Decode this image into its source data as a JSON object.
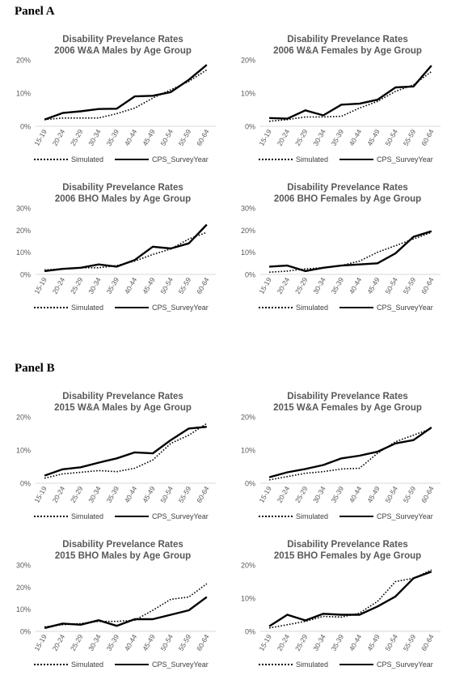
{
  "panels": {
    "a": "Panel A",
    "b": "Panel B"
  },
  "legend": {
    "simulated": "Simulated",
    "cps": "CPS_SurveyYear"
  },
  "colors": {
    "line": "#000000",
    "axis_text": "#595959",
    "title": "#595959"
  },
  "chart_data": [
    {
      "type": "line",
      "title_line1": "Disability Prevelance Rates",
      "title_line2": "2006 W&A Males by Age Group",
      "categories": [
        "15-19",
        "20-24",
        "25-29",
        "30-34",
        "35-39",
        "40-44",
        "45-49",
        "50-54",
        "55-59",
        "60-64"
      ],
      "ylim": [
        0,
        20
      ],
      "yticks": [
        "0%",
        "10%",
        "20%"
      ],
      "series": [
        {
          "name": "Simulated",
          "style": "dotted",
          "values": [
            2.0,
            2.5,
            2.5,
            2.5,
            3.8,
            5.5,
            8.5,
            11.0,
            13.5,
            17.0
          ]
        },
        {
          "name": "CPS_SurveyYear",
          "style": "solid",
          "values": [
            2.0,
            4.0,
            4.5,
            5.2,
            5.3,
            9.0,
            9.2,
            10.3,
            14.0,
            18.5
          ]
        }
      ]
    },
    {
      "type": "line",
      "title_line1": "Disability Prevelance Rates",
      "title_line2": "2006 W&A Females by Age Group",
      "categories": [
        "15-19",
        "20-24",
        "25-29",
        "30-34",
        "35-39",
        "40-44",
        "45-49",
        "50-54",
        "55-59",
        "60-64"
      ],
      "ylim": [
        0,
        20
      ],
      "yticks": [
        "0%",
        "10%",
        "20%"
      ],
      "series": [
        {
          "name": "Simulated",
          "style": "dotted",
          "values": [
            1.5,
            2.0,
            2.8,
            2.8,
            3.0,
            5.5,
            7.5,
            10.5,
            12.5,
            16.5
          ]
        },
        {
          "name": "CPS_SurveyYear",
          "style": "solid",
          "values": [
            2.5,
            2.3,
            4.8,
            3.3,
            6.5,
            6.8,
            8.0,
            11.7,
            12.0,
            18.3
          ]
        }
      ]
    },
    {
      "type": "line",
      "title_line1": "Disability Prevelance Rates",
      "title_line2": "2006 BHO Males by Age Group",
      "categories": [
        "15-19",
        "20-24",
        "25-29",
        "30-34",
        "35-39",
        "40-44",
        "45-49",
        "50-54",
        "55-59",
        "60-64"
      ],
      "ylim": [
        0,
        30
      ],
      "yticks": [
        "0%",
        "10%",
        "20%",
        "30%"
      ],
      "series": [
        {
          "name": "Simulated",
          "style": "dotted",
          "values": [
            2.0,
            2.5,
            3.0,
            3.0,
            4.0,
            6.0,
            9.0,
            11.5,
            16.0,
            19.0
          ]
        },
        {
          "name": "CPS_SurveyYear",
          "style": "solid",
          "values": [
            1.5,
            2.5,
            3.0,
            4.5,
            3.5,
            6.5,
            12.5,
            11.7,
            14.0,
            22.5
          ]
        }
      ]
    },
    {
      "type": "line",
      "title_line1": "Disability Prevelance Rates",
      "title_line2": "2006 BHO Females by Age Group",
      "categories": [
        "15-19",
        "20-24",
        "25-29",
        "30-34",
        "35-39",
        "40-44",
        "45-49",
        "50-54",
        "55-59",
        "60-64"
      ],
      "ylim": [
        0,
        30
      ],
      "yticks": [
        "0%",
        "10%",
        "20%",
        "30%"
      ],
      "series": [
        {
          "name": "Simulated",
          "style": "dotted",
          "values": [
            1.0,
            1.5,
            2.5,
            3.0,
            4.0,
            6.0,
            10.0,
            13.0,
            16.0,
            19.0
          ]
        },
        {
          "name": "CPS_SurveyYear",
          "style": "solid",
          "values": [
            3.5,
            4.0,
            1.5,
            3.0,
            4.0,
            4.5,
            5.0,
            9.5,
            17.0,
            19.5
          ]
        }
      ]
    },
    {
      "type": "line",
      "title_line1": "Disability Prevelance Rates",
      "title_line2": "2015 W&A Males by Age Group",
      "categories": [
        "15-19",
        "20-24",
        "25-29",
        "30-34",
        "35-39",
        "40-44",
        "45-49",
        "50-54",
        "55-59",
        "60-64"
      ],
      "ylim": [
        0,
        20
      ],
      "yticks": [
        "0%",
        "10%",
        "20%"
      ],
      "series": [
        {
          "name": "Simulated",
          "style": "dotted",
          "values": [
            1.5,
            2.8,
            3.3,
            3.8,
            3.5,
            4.5,
            7.0,
            12.0,
            14.5,
            18.0
          ]
        },
        {
          "name": "CPS_SurveyYear",
          "style": "solid",
          "values": [
            2.3,
            4.2,
            4.8,
            6.2,
            7.5,
            9.3,
            9.0,
            13.0,
            16.5,
            17.0
          ]
        }
      ]
    },
    {
      "type": "line",
      "title_line1": "Disability Prevelance Rates",
      "title_line2": "2015 W&A Females by Age Group",
      "categories": [
        "15-19",
        "20-24",
        "25-29",
        "30-34",
        "35-39",
        "40-44",
        "45-49",
        "50-54",
        "55-59",
        "60-64"
      ],
      "ylim": [
        0,
        20
      ],
      "yticks": [
        "0%",
        "10%",
        "20%"
      ],
      "series": [
        {
          "name": "Simulated",
          "style": "dotted",
          "values": [
            1.0,
            2.0,
            3.0,
            3.5,
            4.3,
            4.5,
            9.0,
            12.5,
            14.5,
            16.5
          ]
        },
        {
          "name": "CPS_SurveyYear",
          "style": "solid",
          "values": [
            1.8,
            3.3,
            4.3,
            5.5,
            7.5,
            8.3,
            9.5,
            12.0,
            13.0,
            16.8
          ]
        }
      ]
    },
    {
      "type": "line",
      "title_line1": "Disability Prevelance Rates",
      "title_line2": "2015 BHO Males by Age Group",
      "categories": [
        "15-19",
        "20-24",
        "25-29",
        "30-34",
        "35-39",
        "40-44",
        "45-49",
        "50-54",
        "55-59",
        "60-64"
      ],
      "ylim": [
        0,
        30
      ],
      "yticks": [
        "0%",
        "10%",
        "20%",
        "30%"
      ],
      "series": [
        {
          "name": "Simulated",
          "style": "dotted",
          "values": [
            2.0,
            3.0,
            3.5,
            4.5,
            4.5,
            5.0,
            9.5,
            14.5,
            15.5,
            21.5
          ]
        },
        {
          "name": "CPS_SurveyYear",
          "style": "solid",
          "values": [
            1.5,
            3.5,
            3.0,
            5.0,
            2.5,
            5.5,
            5.5,
            7.5,
            9.5,
            15.5
          ]
        }
      ]
    },
    {
      "type": "line",
      "title_line1": "Disability Prevelance Rates",
      "title_line2": "2015 BHO Females by Age Group",
      "categories": [
        "15-19",
        "20-24",
        "25-29",
        "30-34",
        "35-39",
        "40-44",
        "45-49",
        "50-54",
        "55-59",
        "60-64"
      ],
      "ylim": [
        0,
        20
      ],
      "yticks": [
        "0%",
        "10%",
        "20%"
      ],
      "series": [
        {
          "name": "Simulated",
          "style": "dotted",
          "values": [
            1.0,
            2.0,
            3.0,
            4.5,
            4.3,
            5.5,
            9.0,
            15.0,
            16.0,
            18.5
          ]
        },
        {
          "name": "CPS_SurveyYear",
          "style": "solid",
          "values": [
            1.5,
            5.0,
            3.3,
            5.3,
            5.0,
            5.0,
            7.5,
            10.5,
            16.0,
            18.0
          ]
        }
      ]
    }
  ]
}
